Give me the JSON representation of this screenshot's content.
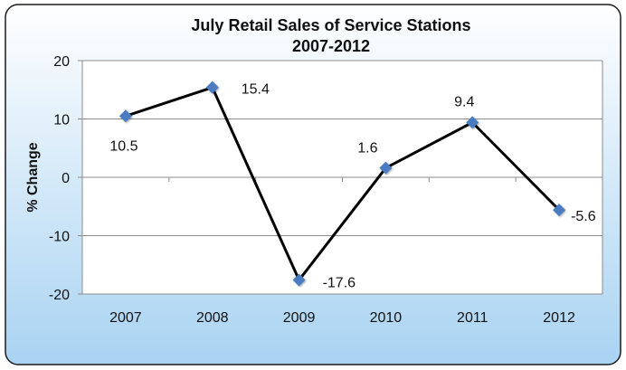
{
  "colors": {
    "frame_gradient_top": "#ffffff",
    "frame_gradient_bottom": "#a9d3f2",
    "frame_border": "#1a1a1a",
    "plot_background": "#ffffff",
    "gridline": "#8c8c8c",
    "series_line": "#000000",
    "marker": "#4a7cc0"
  },
  "chart_data": {
    "type": "line",
    "title": "July Retail Sales of Service Stations",
    "subtitle": "2007-2012",
    "xlabel": "",
    "ylabel": "% Change",
    "categories": [
      "2007",
      "2008",
      "2009",
      "2010",
      "2011",
      "2012"
    ],
    "series": [
      {
        "values": [
          10.5,
          15.4,
          -17.6,
          1.6,
          9.4,
          -5.6
        ]
      }
    ],
    "data_labels": [
      "10.5",
      "15.4",
      "-17.6",
      "1.6",
      "9.4",
      "-5.6"
    ],
    "ylim": [
      -20,
      20
    ],
    "yticks": [
      -20,
      -10,
      0,
      10,
      20
    ],
    "grid": true,
    "legend": false,
    "marker": "diamond"
  }
}
